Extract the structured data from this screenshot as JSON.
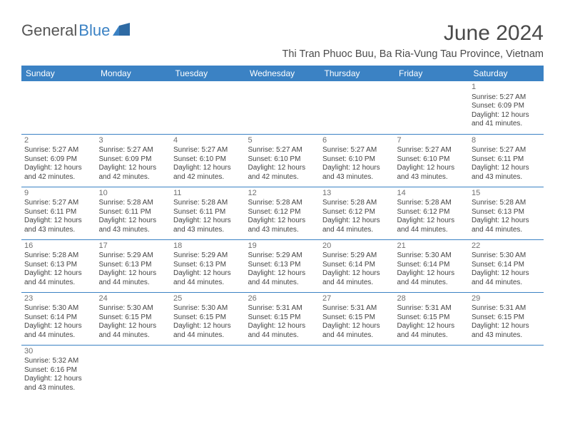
{
  "logo": {
    "part1": "General",
    "part2": "Blue"
  },
  "title": "June 2024",
  "location": "Thi Tran Phuoc Buu, Ba Ria-Vung Tau Province, Vietnam",
  "colors": {
    "header_bg": "#3b82c4",
    "header_text": "#ffffff",
    "body_text": "#444444",
    "day_num": "#707070",
    "border": "#3b82c4",
    "logo_gray": "#555555",
    "logo_blue": "#3b82c4",
    "title_color": "#4a4a4a"
  },
  "typography": {
    "month_title_size": 30,
    "location_size": 14.5,
    "weekday_size": 12,
    "cell_size": 10,
    "daynum_size": 11
  },
  "weekdays": [
    "Sunday",
    "Monday",
    "Tuesday",
    "Wednesday",
    "Thursday",
    "Friday",
    "Saturday"
  ],
  "weeks": [
    [
      null,
      null,
      null,
      null,
      null,
      null,
      {
        "n": "1",
        "sr": "Sunrise: 5:27 AM",
        "ss": "Sunset: 6:09 PM",
        "dl": "Daylight: 12 hours and 41 minutes."
      }
    ],
    [
      {
        "n": "2",
        "sr": "Sunrise: 5:27 AM",
        "ss": "Sunset: 6:09 PM",
        "dl": "Daylight: 12 hours and 42 minutes."
      },
      {
        "n": "3",
        "sr": "Sunrise: 5:27 AM",
        "ss": "Sunset: 6:09 PM",
        "dl": "Daylight: 12 hours and 42 minutes."
      },
      {
        "n": "4",
        "sr": "Sunrise: 5:27 AM",
        "ss": "Sunset: 6:10 PM",
        "dl": "Daylight: 12 hours and 42 minutes."
      },
      {
        "n": "5",
        "sr": "Sunrise: 5:27 AM",
        "ss": "Sunset: 6:10 PM",
        "dl": "Daylight: 12 hours and 42 minutes."
      },
      {
        "n": "6",
        "sr": "Sunrise: 5:27 AM",
        "ss": "Sunset: 6:10 PM",
        "dl": "Daylight: 12 hours and 43 minutes."
      },
      {
        "n": "7",
        "sr": "Sunrise: 5:27 AM",
        "ss": "Sunset: 6:10 PM",
        "dl": "Daylight: 12 hours and 43 minutes."
      },
      {
        "n": "8",
        "sr": "Sunrise: 5:27 AM",
        "ss": "Sunset: 6:11 PM",
        "dl": "Daylight: 12 hours and 43 minutes."
      }
    ],
    [
      {
        "n": "9",
        "sr": "Sunrise: 5:27 AM",
        "ss": "Sunset: 6:11 PM",
        "dl": "Daylight: 12 hours and 43 minutes."
      },
      {
        "n": "10",
        "sr": "Sunrise: 5:28 AM",
        "ss": "Sunset: 6:11 PM",
        "dl": "Daylight: 12 hours and 43 minutes."
      },
      {
        "n": "11",
        "sr": "Sunrise: 5:28 AM",
        "ss": "Sunset: 6:11 PM",
        "dl": "Daylight: 12 hours and 43 minutes."
      },
      {
        "n": "12",
        "sr": "Sunrise: 5:28 AM",
        "ss": "Sunset: 6:12 PM",
        "dl": "Daylight: 12 hours and 43 minutes."
      },
      {
        "n": "13",
        "sr": "Sunrise: 5:28 AM",
        "ss": "Sunset: 6:12 PM",
        "dl": "Daylight: 12 hours and 44 minutes."
      },
      {
        "n": "14",
        "sr": "Sunrise: 5:28 AM",
        "ss": "Sunset: 6:12 PM",
        "dl": "Daylight: 12 hours and 44 minutes."
      },
      {
        "n": "15",
        "sr": "Sunrise: 5:28 AM",
        "ss": "Sunset: 6:13 PM",
        "dl": "Daylight: 12 hours and 44 minutes."
      }
    ],
    [
      {
        "n": "16",
        "sr": "Sunrise: 5:28 AM",
        "ss": "Sunset: 6:13 PM",
        "dl": "Daylight: 12 hours and 44 minutes."
      },
      {
        "n": "17",
        "sr": "Sunrise: 5:29 AM",
        "ss": "Sunset: 6:13 PM",
        "dl": "Daylight: 12 hours and 44 minutes."
      },
      {
        "n": "18",
        "sr": "Sunrise: 5:29 AM",
        "ss": "Sunset: 6:13 PM",
        "dl": "Daylight: 12 hours and 44 minutes."
      },
      {
        "n": "19",
        "sr": "Sunrise: 5:29 AM",
        "ss": "Sunset: 6:13 PM",
        "dl": "Daylight: 12 hours and 44 minutes."
      },
      {
        "n": "20",
        "sr": "Sunrise: 5:29 AM",
        "ss": "Sunset: 6:14 PM",
        "dl": "Daylight: 12 hours and 44 minutes."
      },
      {
        "n": "21",
        "sr": "Sunrise: 5:30 AM",
        "ss": "Sunset: 6:14 PM",
        "dl": "Daylight: 12 hours and 44 minutes."
      },
      {
        "n": "22",
        "sr": "Sunrise: 5:30 AM",
        "ss": "Sunset: 6:14 PM",
        "dl": "Daylight: 12 hours and 44 minutes."
      }
    ],
    [
      {
        "n": "23",
        "sr": "Sunrise: 5:30 AM",
        "ss": "Sunset: 6:14 PM",
        "dl": "Daylight: 12 hours and 44 minutes."
      },
      {
        "n": "24",
        "sr": "Sunrise: 5:30 AM",
        "ss": "Sunset: 6:15 PM",
        "dl": "Daylight: 12 hours and 44 minutes."
      },
      {
        "n": "25",
        "sr": "Sunrise: 5:30 AM",
        "ss": "Sunset: 6:15 PM",
        "dl": "Daylight: 12 hours and 44 minutes."
      },
      {
        "n": "26",
        "sr": "Sunrise: 5:31 AM",
        "ss": "Sunset: 6:15 PM",
        "dl": "Daylight: 12 hours and 44 minutes."
      },
      {
        "n": "27",
        "sr": "Sunrise: 5:31 AM",
        "ss": "Sunset: 6:15 PM",
        "dl": "Daylight: 12 hours and 44 minutes."
      },
      {
        "n": "28",
        "sr": "Sunrise: 5:31 AM",
        "ss": "Sunset: 6:15 PM",
        "dl": "Daylight: 12 hours and 44 minutes."
      },
      {
        "n": "29",
        "sr": "Sunrise: 5:31 AM",
        "ss": "Sunset: 6:15 PM",
        "dl": "Daylight: 12 hours and 43 minutes."
      }
    ],
    [
      {
        "n": "30",
        "sr": "Sunrise: 5:32 AM",
        "ss": "Sunset: 6:16 PM",
        "dl": "Daylight: 12 hours and 43 minutes."
      },
      null,
      null,
      null,
      null,
      null,
      null
    ]
  ]
}
